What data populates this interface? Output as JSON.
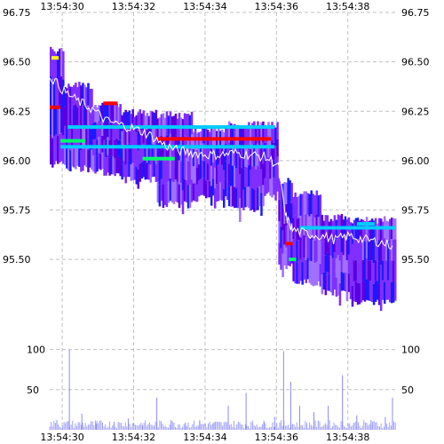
{
  "chart_data": {
    "type": "heatmap",
    "x_ticks": [
      "13:54:30",
      "13:54:32",
      "13:54:34",
      "13:54:36",
      "13:54:38"
    ],
    "price_ticks": [
      "96.75",
      "96.50",
      "96.25",
      "96.00",
      "95.75",
      "95.50"
    ],
    "volume_ticks": [
      "100",
      "50"
    ],
    "price_ylim": [
      95.15,
      96.75
    ],
    "volume_ylim": [
      0,
      115
    ],
    "xlim_seconds": [
      0,
      9.7
    ],
    "grid": true,
    "colors": {
      "depth_main": "#7f2fff",
      "depth_dark": "#5a00e0",
      "depth_blue": "#1a1aff",
      "depth_light": "#a070ff",
      "highlight_red": "#ff0000",
      "highlight_green": "#00ff66",
      "highlight_cyan": "#00ccff",
      "highlight_yellow": "#ffff00",
      "price_line": "#ffffff",
      "volume": "#8888ff",
      "grid": "#c0c0c0"
    },
    "price_series": [
      {
        "t": 0.0,
        "p": 96.43
      },
      {
        "t": 0.4,
        "p": 96.35
      },
      {
        "t": 0.8,
        "p": 96.3
      },
      {
        "t": 1.2,
        "p": 96.26
      },
      {
        "t": 1.6,
        "p": 96.2
      },
      {
        "t": 2.0,
        "p": 96.18
      },
      {
        "t": 2.4,
        "p": 96.16
      },
      {
        "t": 2.8,
        "p": 96.13
      },
      {
        "t": 3.2,
        "p": 96.08
      },
      {
        "t": 3.6,
        "p": 96.05
      },
      {
        "t": 4.0,
        "p": 96.04
      },
      {
        "t": 4.4,
        "p": 96.03
      },
      {
        "t": 4.8,
        "p": 96.03
      },
      {
        "t": 5.2,
        "p": 96.04
      },
      {
        "t": 5.6,
        "p": 96.03
      },
      {
        "t": 6.0,
        "p": 96.02
      },
      {
        "t": 6.4,
        "p": 95.98
      },
      {
        "t": 6.6,
        "p": 95.72
      },
      {
        "t": 6.8,
        "p": 95.65
      },
      {
        "t": 7.2,
        "p": 95.63
      },
      {
        "t": 7.6,
        "p": 95.62
      },
      {
        "t": 8.0,
        "p": 95.6
      },
      {
        "t": 8.4,
        "p": 95.62
      },
      {
        "t": 8.8,
        "p": 95.6
      },
      {
        "t": 9.2,
        "p": 95.59
      },
      {
        "t": 9.6,
        "p": 95.57
      }
    ],
    "depth_bands": [
      {
        "t0": 0.0,
        "t1": 0.4,
        "low": 96.0,
        "high": 96.58
      },
      {
        "t0": 0.4,
        "t1": 1.2,
        "low": 95.98,
        "high": 96.4
      },
      {
        "t0": 1.2,
        "t1": 2.0,
        "low": 95.96,
        "high": 96.3
      },
      {
        "t0": 2.0,
        "t1": 3.0,
        "low": 95.92,
        "high": 96.26
      },
      {
        "t0": 3.0,
        "t1": 4.0,
        "low": 95.8,
        "high": 96.25
      },
      {
        "t0": 4.0,
        "t1": 5.0,
        "low": 95.83,
        "high": 96.18
      },
      {
        "t0": 5.0,
        "t1": 6.0,
        "low": 95.77,
        "high": 96.2
      },
      {
        "t0": 6.0,
        "t1": 6.4,
        "low": 95.85,
        "high": 96.2
      },
      {
        "t0": 6.4,
        "t1": 6.8,
        "low": 95.48,
        "high": 95.92
      },
      {
        "t0": 6.8,
        "t1": 7.6,
        "low": 95.4,
        "high": 95.85
      },
      {
        "t0": 7.6,
        "t1": 8.4,
        "low": 95.35,
        "high": 95.73
      },
      {
        "t0": 8.4,
        "t1": 9.7,
        "low": 95.3,
        "high": 95.72
      }
    ],
    "highlights": [
      {
        "t0": 0.0,
        "t1": 0.3,
        "p": 96.27,
        "color": "highlight_red"
      },
      {
        "t0": 1.5,
        "t1": 1.9,
        "p": 96.29,
        "color": "highlight_red"
      },
      {
        "t0": 2.6,
        "t1": 3.5,
        "p": 96.01,
        "color": "highlight_green"
      },
      {
        "t0": 0.3,
        "t1": 1.0,
        "p": 96.1,
        "color": "highlight_green"
      },
      {
        "t0": 0.3,
        "t1": 6.3,
        "p": 96.07,
        "color": "highlight_cyan"
      },
      {
        "t0": 0.5,
        "t1": 6.3,
        "p": 96.17,
        "color": "highlight_cyan"
      },
      {
        "t0": 3.0,
        "t1": 6.2,
        "p": 96.11,
        "color": "highlight_red"
      },
      {
        "t0": 6.6,
        "t1": 6.8,
        "p": 95.58,
        "color": "highlight_red"
      },
      {
        "t0": 6.7,
        "t1": 6.9,
        "p": 95.5,
        "color": "highlight_green"
      },
      {
        "t0": 7.0,
        "t1": 9.7,
        "p": 95.66,
        "color": "highlight_cyan"
      },
      {
        "t0": 8.6,
        "t1": 9.1,
        "p": 95.68,
        "color": "highlight_cyan"
      },
      {
        "t0": 0.05,
        "t1": 0.25,
        "p": 96.52,
        "color": "highlight_yellow"
      }
    ],
    "volume": [
      {
        "t": 0.2,
        "v": 12
      },
      {
        "t": 0.55,
        "v": 100
      },
      {
        "t": 0.9,
        "v": 20
      },
      {
        "t": 1.3,
        "v": 8
      },
      {
        "t": 1.8,
        "v": 10
      },
      {
        "t": 2.2,
        "v": 14
      },
      {
        "t": 2.6,
        "v": 6
      },
      {
        "t": 3.0,
        "v": 40
      },
      {
        "t": 3.4,
        "v": 12
      },
      {
        "t": 3.8,
        "v": 9
      },
      {
        "t": 4.2,
        "v": 12
      },
      {
        "t": 4.6,
        "v": 8
      },
      {
        "t": 5.0,
        "v": 30
      },
      {
        "t": 5.5,
        "v": 46
      },
      {
        "t": 6.0,
        "v": 10
      },
      {
        "t": 6.3,
        "v": 16
      },
      {
        "t": 6.55,
        "v": 98
      },
      {
        "t": 6.75,
        "v": 60
      },
      {
        "t": 7.0,
        "v": 30
      },
      {
        "t": 7.4,
        "v": 22
      },
      {
        "t": 7.8,
        "v": 30
      },
      {
        "t": 8.2,
        "v": 68
      },
      {
        "t": 8.6,
        "v": 18
      },
      {
        "t": 9.0,
        "v": 12
      },
      {
        "t": 9.4,
        "v": 16
      },
      {
        "t": 9.6,
        "v": 40
      }
    ]
  }
}
